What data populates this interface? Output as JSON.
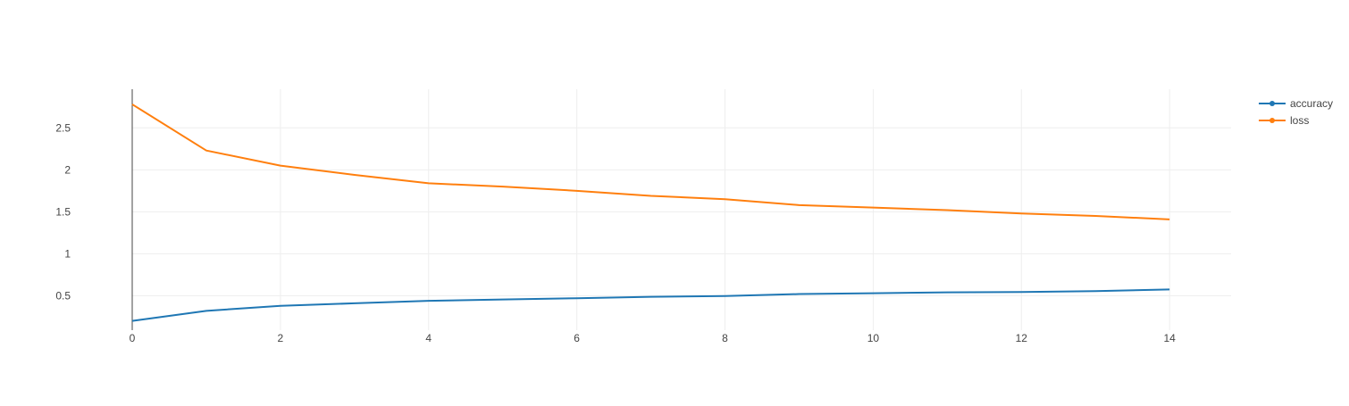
{
  "chart_data": {
    "type": "line",
    "title": "",
    "xlabel": "",
    "ylabel": "",
    "x": [
      0,
      1,
      2,
      3,
      4,
      5,
      6,
      7,
      8,
      9,
      10,
      11,
      12,
      13,
      14
    ],
    "xlim": [
      0,
      14.83
    ],
    "ylim": [
      0.09,
      2.96
    ],
    "xticks": [
      0,
      2,
      4,
      6,
      8,
      10,
      12,
      14
    ],
    "xtick_labels": [
      "0",
      "2",
      "4",
      "6",
      "8",
      "10",
      "12",
      "14"
    ],
    "yticks": [
      0.5,
      1,
      1.5,
      2,
      2.5
    ],
    "ytick_labels": [
      "0.5",
      "1",
      "1.5",
      "2",
      "2.5"
    ],
    "grid": true,
    "legend_position": "top-right",
    "series": [
      {
        "name": "accuracy",
        "color": "#1f77b4",
        "values": [
          0.2,
          0.32,
          0.38,
          0.41,
          0.44,
          0.455,
          0.47,
          0.487,
          0.497,
          0.52,
          0.53,
          0.54,
          0.545,
          0.555,
          0.575
        ]
      },
      {
        "name": "loss",
        "color": "#ff7f0e",
        "values": [
          2.78,
          2.23,
          2.05,
          1.94,
          1.84,
          1.8,
          1.75,
          1.69,
          1.65,
          1.58,
          1.55,
          1.52,
          1.48,
          1.45,
          1.41
        ]
      }
    ]
  }
}
